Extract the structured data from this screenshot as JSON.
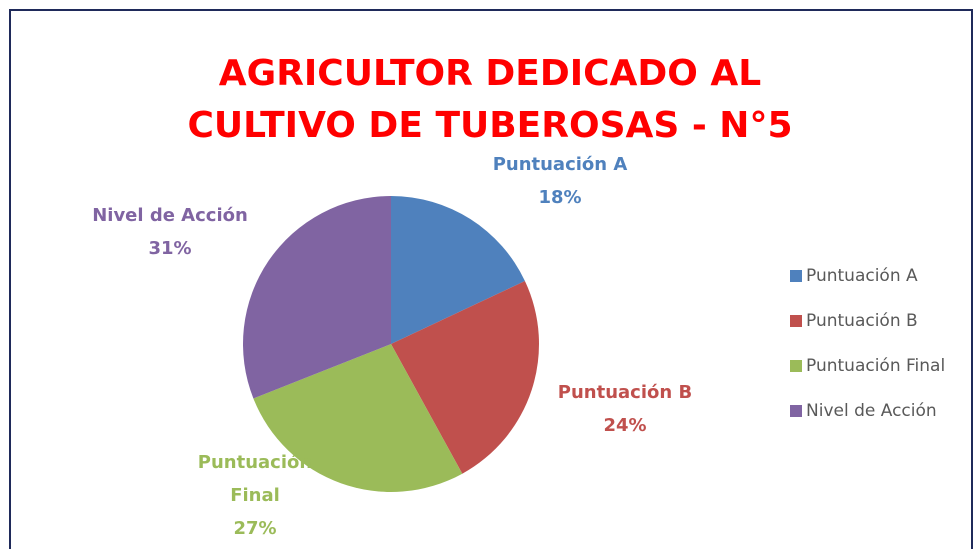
{
  "chart_data": {
    "type": "pie",
    "title": "AGRICULTOR DEDICADO AL CULTIVO DE TUBEROSAS - N°5",
    "categories": [
      "Puntuación A",
      "Puntuación B",
      "Puntuación Final",
      "Nivel de Acción"
    ],
    "values": [
      18,
      24,
      27,
      31
    ],
    "value_labels": [
      "18%",
      "24%",
      "27%",
      "31%"
    ],
    "colors": [
      "#4f81bd",
      "#c0504d",
      "#9bbb59",
      "#8064a2"
    ],
    "legend": "right"
  }
}
